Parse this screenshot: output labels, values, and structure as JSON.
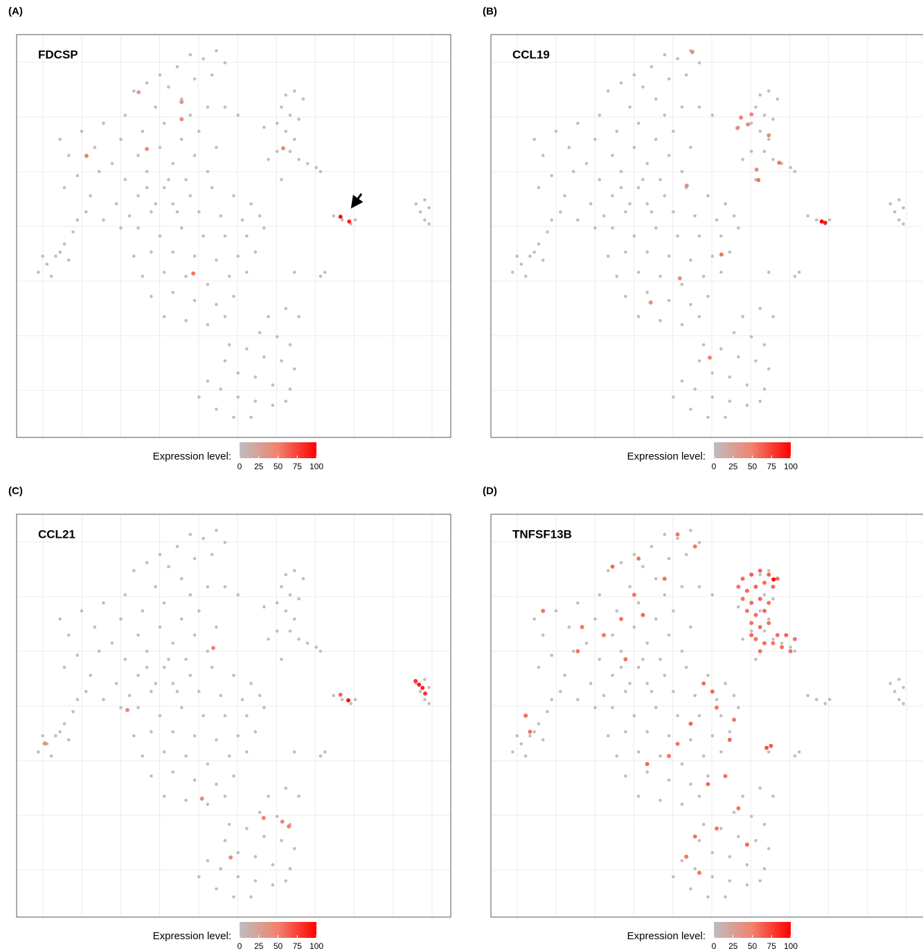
{
  "background": {
    "x": [
      40,
      43,
      46,
      48,
      37,
      33,
      30,
      27,
      35,
      41,
      45,
      38,
      32,
      25,
      20,
      15,
      10,
      12,
      18,
      24,
      29,
      34,
      40,
      44,
      22,
      28,
      33,
      38,
      42,
      14,
      19,
      25,
      30,
      36,
      41,
      46,
      11,
      17,
      23,
      28,
      34,
      39,
      44,
      20,
      26,
      31,
      36,
      16,
      24,
      5,
      7,
      9,
      11,
      13,
      14,
      8,
      10,
      12,
      6,
      30,
      35,
      40,
      45,
      50,
      54,
      56,
      52,
      47,
      42,
      37,
      32,
      28,
      33,
      38,
      43,
      48,
      53,
      57,
      27,
      31,
      36,
      41,
      46,
      51,
      55,
      29,
      34,
      39,
      44,
      49,
      53,
      31,
      36,
      41,
      46,
      50,
      34,
      39,
      44,
      48,
      58,
      62,
      65,
      56,
      60,
      63,
      53,
      57,
      61,
      64,
      48,
      51,
      55,
      59,
      63,
      44,
      47,
      51,
      55,
      59,
      42,
      46,
      50,
      54,
      62,
      49,
      62,
      64,
      66,
      61,
      63,
      65,
      60,
      62,
      64,
      63,
      65,
      67,
      69,
      70,
      60,
      57,
      58,
      73,
      75,
      77,
      78,
      92,
      94,
      93,
      95,
      94,
      95,
      64,
      70,
      71,
      51,
      48,
      61
    ],
    "y": [
      95,
      94,
      96,
      93,
      92,
      90,
      88,
      86,
      87,
      89,
      90,
      84,
      82,
      80,
      78,
      76,
      74,
      70,
      72,
      74,
      76,
      78,
      80,
      82,
      68,
      70,
      72,
      74,
      76,
      65,
      66,
      64,
      66,
      68,
      70,
      72,
      62,
      60,
      58,
      60,
      62,
      64,
      66,
      54,
      55,
      56,
      58,
      56,
      52,
      41,
      43,
      45,
      48,
      51,
      54,
      40,
      46,
      44,
      45,
      62,
      64,
      60,
      62,
      60,
      58,
      55,
      54,
      55,
      56,
      56,
      58,
      52,
      50,
      52,
      50,
      50,
      50,
      52,
      45,
      46,
      46,
      45,
      44,
      45,
      46,
      40,
      41,
      40,
      38,
      40,
      41,
      35,
      36,
      34,
      33,
      35,
      30,
      29,
      28,
      30,
      30,
      32,
      30,
      26,
      25,
      23,
      22,
      20,
      19,
      17,
      19,
      16,
      15,
      13,
      12,
      14,
      12,
      10,
      9,
      8,
      10,
      7,
      5,
      5,
      9,
      23,
      85,
      86,
      84,
      82,
      80,
      79,
      78,
      76,
      74,
      71,
      69,
      68,
      67,
      66,
      71,
      77,
      69,
      55,
      54,
      53,
      54,
      58,
      59,
      56,
      57,
      54,
      53,
      41,
      40,
      41,
      80,
      82,
      64
    ]
  },
  "chart_data": [
    {
      "type": "scatter",
      "panel": "(A)",
      "title": "FDCSP",
      "x": [
        16.1,
        38,
        38,
        30,
        61.4,
        40.7,
        74.6,
        76.6,
        28.1
      ],
      "y": [
        69.9,
        83.3,
        79,
        71.6,
        71.8,
        40.7,
        54.8,
        53.6,
        85.7
      ],
      "values": [
        50,
        35,
        40,
        40,
        45,
        55,
        95,
        85,
        25
      ],
      "xlim": [
        0,
        100
      ],
      "ylim": [
        0,
        100
      ],
      "legend_title": "Expression level:",
      "clim": [
        0,
        100
      ],
      "cticks": [
        0,
        25,
        50,
        75,
        100
      ],
      "colorscale": [
        "#bebebe",
        "#f0826e",
        "#ff0000"
      ]
    },
    {
      "type": "scatter",
      "panel": "(B)",
      "title": "CCL19",
      "x": [
        46.4,
        57.6,
        59.2,
        56.8,
        60,
        64,
        66.4,
        61.6,
        61.2,
        76.2,
        77,
        53.1,
        43.5,
        36.8,
        50.4,
        45.1
      ],
      "y": [
        95.7,
        79.4,
        77.7,
        76.8,
        80.2,
        75,
        68.2,
        63.9,
        66.5,
        53.6,
        53.3,
        45.4,
        39.5,
        33.5,
        19.8,
        62.5
      ],
      "values": [
        40,
        50,
        45,
        40,
        45,
        40,
        55,
        55,
        40,
        100,
        90,
        55,
        40,
        40,
        50,
        40
      ],
      "xlim": [
        0,
        100
      ],
      "ylim": [
        0,
        100
      ],
      "legend_title": "Expression level:",
      "clim": [
        0,
        100
      ],
      "cticks": [
        0,
        25,
        50,
        75,
        100
      ],
      "colorscale": [
        "#bebebe",
        "#f0826e",
        "#ff0000"
      ]
    },
    {
      "type": "scatter",
      "panel": "(C)",
      "title": "CCL21",
      "x": [
        92.7,
        93.5,
        91.9,
        94.1,
        76.4,
        74.6,
        45.3,
        25.5,
        6.5,
        42.7,
        56.9,
        62.7,
        61.2,
        49.3
      ],
      "y": [
        57.7,
        56.9,
        58.6,
        55.5,
        53.8,
        55.2,
        66.8,
        51.4,
        43.1,
        29.4,
        24.6,
        22.5,
        23.7,
        14.8
      ],
      "values": [
        90,
        85,
        80,
        80,
        95,
        60,
        50,
        45,
        40,
        45,
        50,
        50,
        45,
        45
      ],
      "xlim": [
        0,
        100
      ],
      "ylim": [
        0,
        100
      ],
      "legend_title": "Expression level:",
      "clim": [
        0,
        100
      ],
      "cticks": [
        0,
        25,
        50,
        75,
        100
      ],
      "colorscale": [
        "#bebebe",
        "#f0826e",
        "#ff0000"
      ]
    },
    {
      "type": "scatter",
      "panel": "(D)",
      "title": "TNFSF13B",
      "x": [
        58,
        60,
        62,
        64,
        66,
        57,
        59,
        61,
        63,
        65,
        58,
        60,
        62,
        64,
        59,
        61,
        63,
        60,
        62,
        64,
        66,
        68,
        70,
        61,
        63,
        65,
        67,
        69,
        62,
        60,
        65.1,
        43,
        47,
        34,
        28,
        12,
        8,
        9,
        21,
        35,
        31,
        49,
        52,
        46,
        43,
        55,
        41,
        36,
        54,
        50,
        47,
        63.5,
        64.5,
        52,
        57,
        48,
        59,
        45,
        30,
        26,
        20,
        40,
        51,
        56,
        33
      ],
      "y": [
        84,
        85,
        86,
        85,
        84,
        82,
        81,
        82,
        83,
        82,
        79,
        78,
        79,
        78,
        76,
        75,
        76,
        73,
        72,
        73,
        70,
        70,
        69,
        69,
        68,
        68,
        67,
        66,
        66,
        70,
        83.8,
        95,
        92,
        89,
        87,
        76,
        50,
        46,
        72,
        75,
        64,
        58,
        52,
        48,
        43,
        44,
        40,
        38,
        35,
        33,
        20,
        42,
        42.5,
        22,
        27,
        11,
        18,
        15,
        74,
        70,
        66,
        84,
        56,
        49,
        80
      ],
      "values": [
        60,
        65,
        60,
        62,
        58,
        55,
        60,
        62,
        58,
        60,
        55,
        58,
        60,
        56,
        55,
        57,
        60,
        55,
        58,
        55,
        57,
        60,
        55,
        56,
        58,
        55,
        57,
        55,
        56,
        60,
        100,
        55,
        55,
        55,
        60,
        55,
        60,
        55,
        55,
        60,
        55,
        60,
        55,
        60,
        55,
        60,
        55,
        60,
        55,
        60,
        55,
        70,
        65,
        55,
        55,
        55,
        60,
        55,
        55,
        55,
        55,
        55,
        60,
        55,
        55
      ],
      "xlim": [
        0,
        100
      ],
      "ylim": [
        0,
        100
      ],
      "legend_title": "Expression level:",
      "clim": [
        0,
        100
      ],
      "cticks": [
        0,
        25,
        50,
        75,
        100
      ],
      "colorscale": [
        "#bebebe",
        "#f0826e",
        "#ff0000"
      ]
    }
  ]
}
